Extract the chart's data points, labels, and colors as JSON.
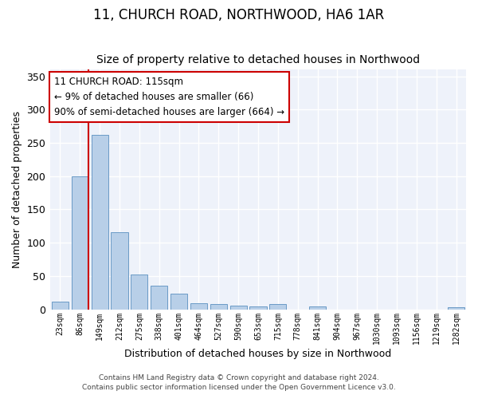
{
  "title1": "11, CHURCH ROAD, NORTHWOOD, HA6 1AR",
  "title2": "Size of property relative to detached houses in Northwood",
  "xlabel": "Distribution of detached houses by size in Northwood",
  "ylabel": "Number of detached properties",
  "categories": [
    "23sqm",
    "86sqm",
    "149sqm",
    "212sqm",
    "275sqm",
    "338sqm",
    "401sqm",
    "464sqm",
    "527sqm",
    "590sqm",
    "653sqm",
    "715sqm",
    "778sqm",
    "841sqm",
    "904sqm",
    "967sqm",
    "1030sqm",
    "1093sqm",
    "1156sqm",
    "1219sqm",
    "1282sqm"
  ],
  "values": [
    11,
    200,
    262,
    116,
    52,
    35,
    23,
    9,
    8,
    5,
    4,
    8,
    0,
    4,
    0,
    0,
    0,
    0,
    0,
    0,
    3
  ],
  "bar_color": "#b8cfe8",
  "bar_edge_color": "#5a8fc0",
  "red_line_x": 1.43,
  "annotation_text": "11 CHURCH ROAD: 115sqm\n← 9% of detached houses are smaller (66)\n90% of semi-detached houses are larger (664) →",
  "annotation_box_color": "#ffffff",
  "annotation_box_edge": "#cc0000",
  "footer1": "Contains HM Land Registry data © Crown copyright and database right 2024.",
  "footer2": "Contains public sector information licensed under the Open Government Licence v3.0.",
  "ylim": [
    0,
    360
  ],
  "yticks": [
    0,
    50,
    100,
    150,
    200,
    250,
    300,
    350
  ],
  "bg_color": "#eef2fa",
  "grid_color": "#ffffff",
  "title1_fontsize": 12,
  "title2_fontsize": 10
}
